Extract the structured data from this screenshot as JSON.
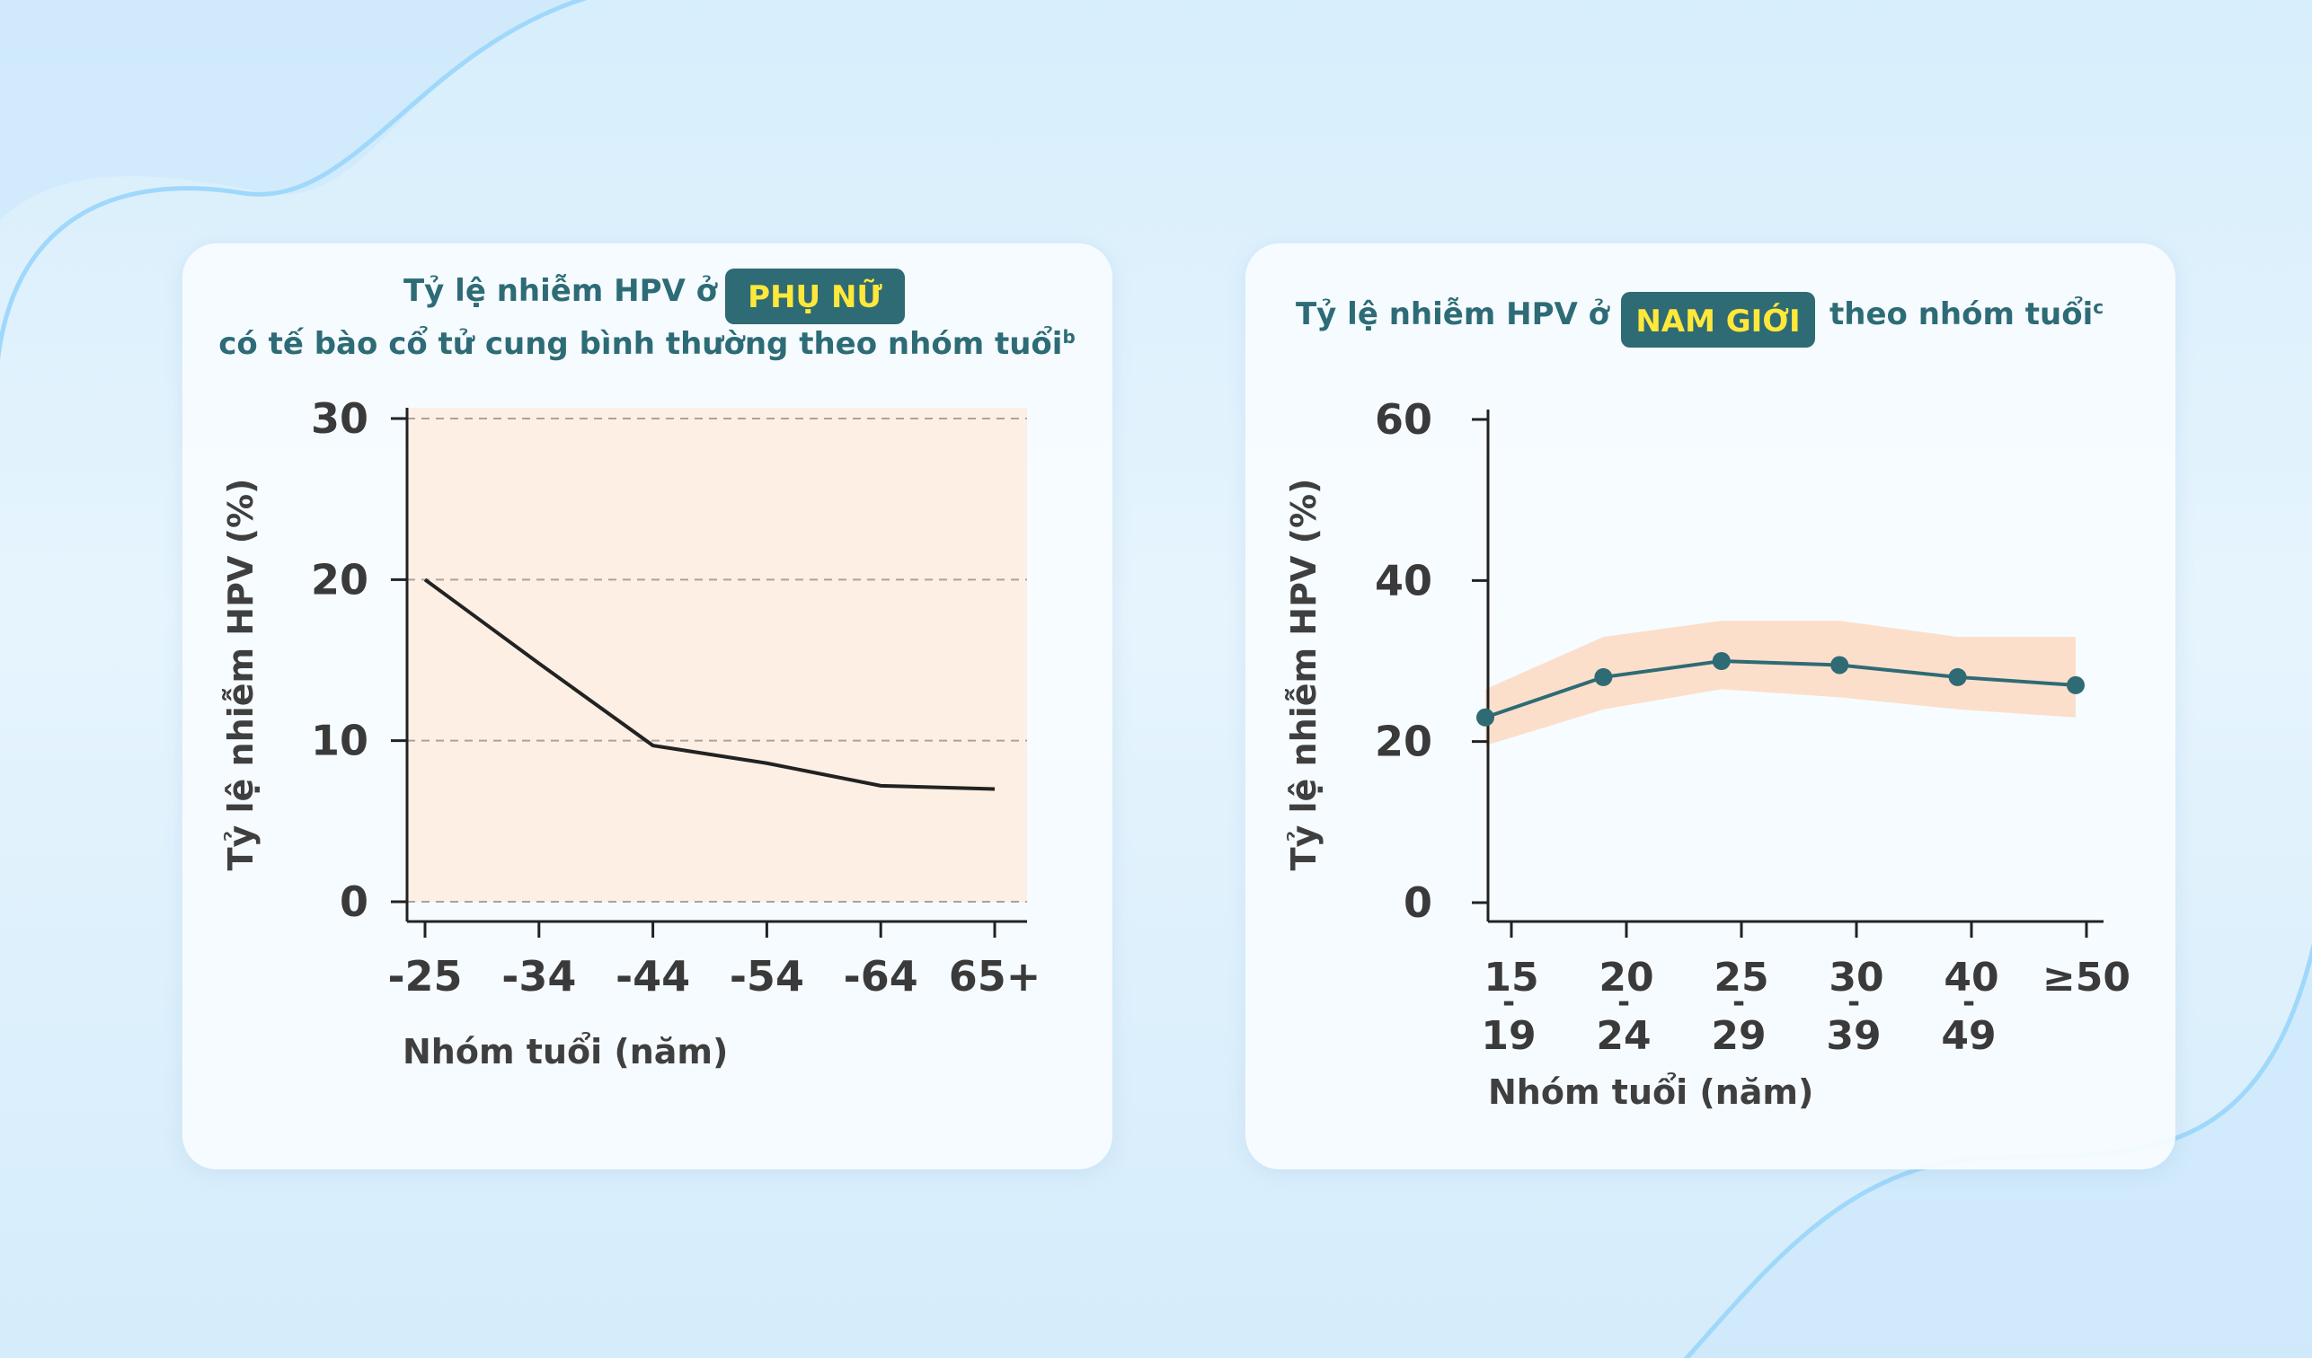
{
  "colors": {
    "accent": "#2d6c76",
    "badge_bg": "#2e6b74",
    "badge_text": "#ffe83a",
    "plot_fill": "#fdefe4",
    "band_fill": "#fcdcc5",
    "line_women": "#222222",
    "line_men": "#2e6b74"
  },
  "chart_data": [
    {
      "type": "line",
      "title": {
        "prefix": "Tỷ lệ nhiễm HPV ở",
        "highlight": "PHỤ NỮ",
        "line2": "có tế bào cổ tử cung bình thường theo nhóm tuổi",
        "superscript": "b"
      },
      "categories": [
        "-25",
        "-34",
        "-44",
        "-54",
        "-64",
        "65+"
      ],
      "values": [
        20,
        14.8,
        9.7,
        8.6,
        7.2,
        7.0
      ],
      "xlabel": "Nhóm tuổi (năm)",
      "ylabel": "Tỷ lệ nhiễm HPV (%)",
      "ylim": [
        0,
        30
      ],
      "yticks": [
        0,
        10,
        20,
        30
      ],
      "grid": true
    },
    {
      "type": "line",
      "title": {
        "prefix": "Tỷ lệ nhiễm HPV ở",
        "highlight": "NAM GIỚI",
        "suffix": "theo nhóm tuổi",
        "superscript": "c"
      },
      "categories": [
        {
          "top": "15",
          "sep": "-",
          "bottom": "19"
        },
        {
          "top": "20",
          "sep": "-",
          "bottom": "24"
        },
        {
          "top": "25",
          "sep": "-",
          "bottom": "29"
        },
        {
          "top": "30",
          "sep": "-",
          "bottom": "39"
        },
        {
          "top": "40",
          "sep": "-",
          "bottom": "49"
        },
        {
          "top": "≥50",
          "sep": "",
          "bottom": ""
        }
      ],
      "values": [
        23,
        28,
        30,
        29.5,
        28,
        27
      ],
      "ci_lower": [
        19.5,
        24,
        26.5,
        25.5,
        24,
        23
      ],
      "ci_upper": [
        26.5,
        33,
        35,
        35,
        33,
        33
      ],
      "xlabel": "Nhóm tuổi (năm)",
      "ylabel": "Tỷ lệ nhiễm HPV (%)",
      "ylim": [
        0,
        60
      ],
      "yticks": [
        0,
        20,
        40,
        60
      ],
      "grid": false
    }
  ]
}
